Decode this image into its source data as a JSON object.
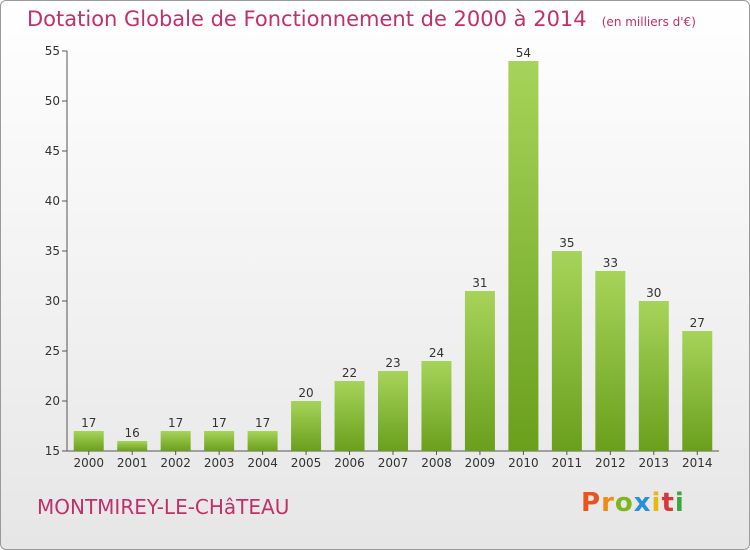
{
  "chart_data": {
    "type": "bar",
    "title": "Dotation Globale de Fonctionnement de 2000 à 2014",
    "unit": "(en milliers d'€)",
    "categories": [
      "2000",
      "2001",
      "2002",
      "2003",
      "2004",
      "2005",
      "2006",
      "2007",
      "2008",
      "2009",
      "2010",
      "2011",
      "2012",
      "2013",
      "2014"
    ],
    "values": [
      17,
      16,
      17,
      17,
      17,
      20,
      22,
      23,
      24,
      31,
      54,
      35,
      33,
      30,
      27
    ],
    "ylim": [
      15,
      55
    ],
    "yticks": [
      15,
      20,
      25,
      30,
      35,
      40,
      45,
      50,
      55
    ],
    "grid": false,
    "colors": {
      "bar_light": "#a6d45a",
      "bar_dark": "#6a9f1c",
      "title": "#c0306a"
    }
  },
  "footer": {
    "commune": "MONTMIREY-LE-CHâTEAU",
    "logo": {
      "letters": [
        "P",
        "r",
        "o",
        "x",
        "i",
        "t",
        "i"
      ],
      "colors": [
        "#e8541c",
        "#f08a14",
        "#7fb51e",
        "#2a8fd8",
        "#e8b80c",
        "#d83838",
        "#3aa83a"
      ]
    }
  }
}
